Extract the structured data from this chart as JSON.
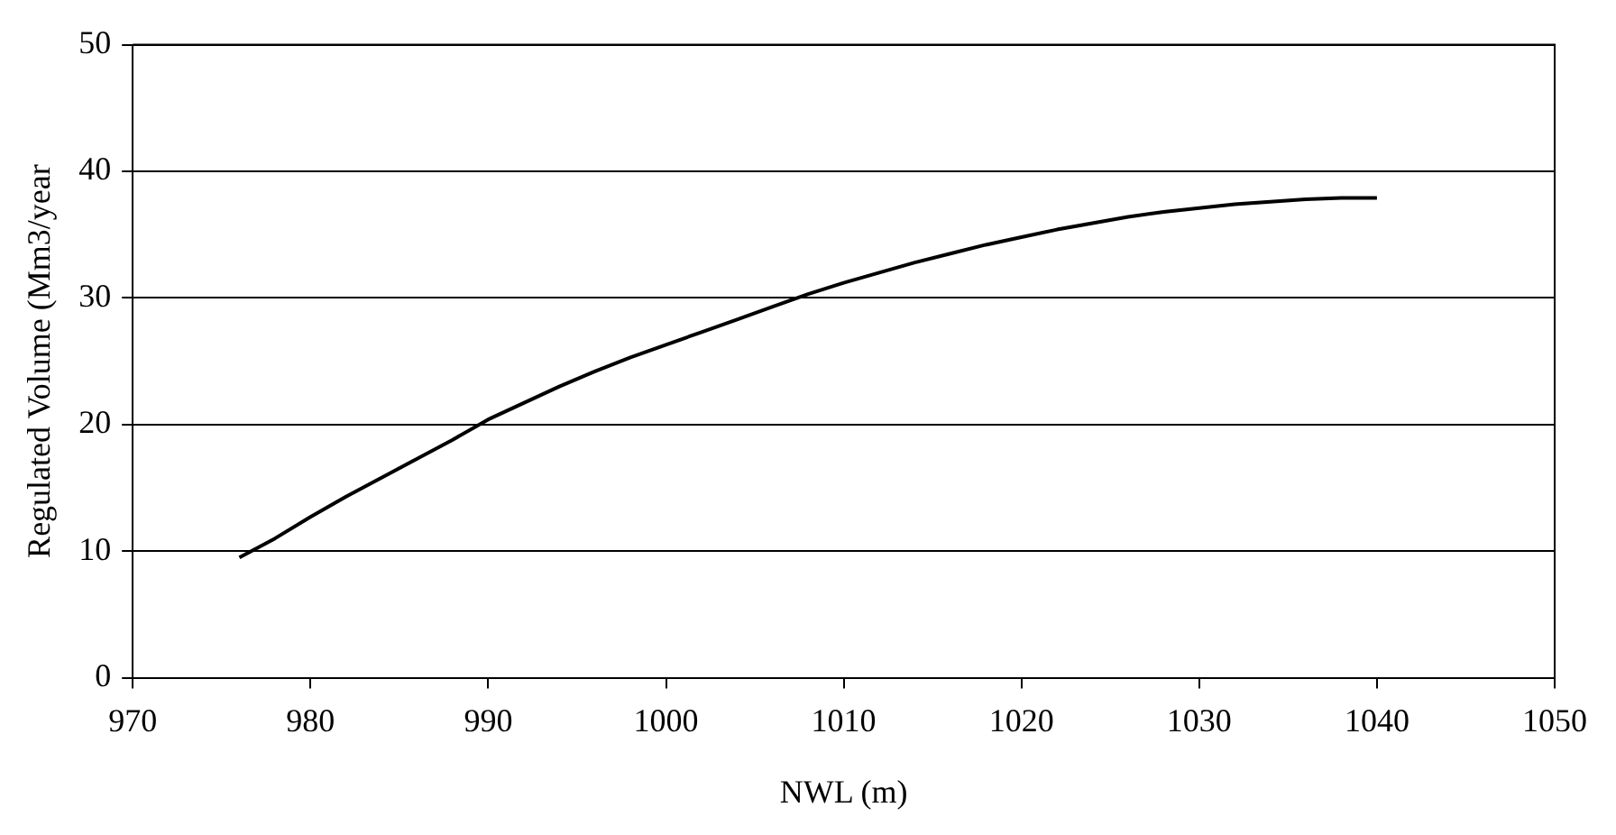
{
  "chart_data": {
    "type": "line",
    "xlabel": "NWL (m)",
    "ylabel": "Regulated Volume (Mm3/year",
    "xlim": [
      970,
      1050
    ],
    "xticks": [
      970,
      980,
      990,
      1000,
      1010,
      1020,
      1030,
      1040,
      1050
    ],
    "ylim": [
      0,
      50
    ],
    "yticks": [
      0,
      10,
      20,
      30,
      40,
      50
    ],
    "grid": "y",
    "legend": false,
    "marker": "none",
    "line_style": "solid",
    "series": [
      {
        "color": "#000000",
        "x": [
          976,
          978,
          980,
          982,
          984,
          986,
          988,
          990,
          992,
          994,
          996,
          998,
          1000,
          1002,
          1004,
          1006,
          1008,
          1010,
          1012,
          1014,
          1016,
          1018,
          1020,
          1022,
          1024,
          1026,
          1028,
          1030,
          1032,
          1034,
          1036,
          1038,
          1040
        ],
        "values": [
          9.5,
          11,
          12.7,
          14.3,
          15.8,
          17.3,
          18.8,
          20.4,
          21.7,
          23.0,
          24.2,
          25.3,
          26.3,
          27.3,
          28.3,
          29.3,
          30.3,
          31.2,
          32.0,
          32.8,
          33.5,
          34.2,
          34.8,
          35.4,
          35.9,
          36.4,
          36.8,
          37.1,
          37.4,
          37.6,
          37.8,
          37.9,
          37.9
        ]
      }
    ]
  }
}
